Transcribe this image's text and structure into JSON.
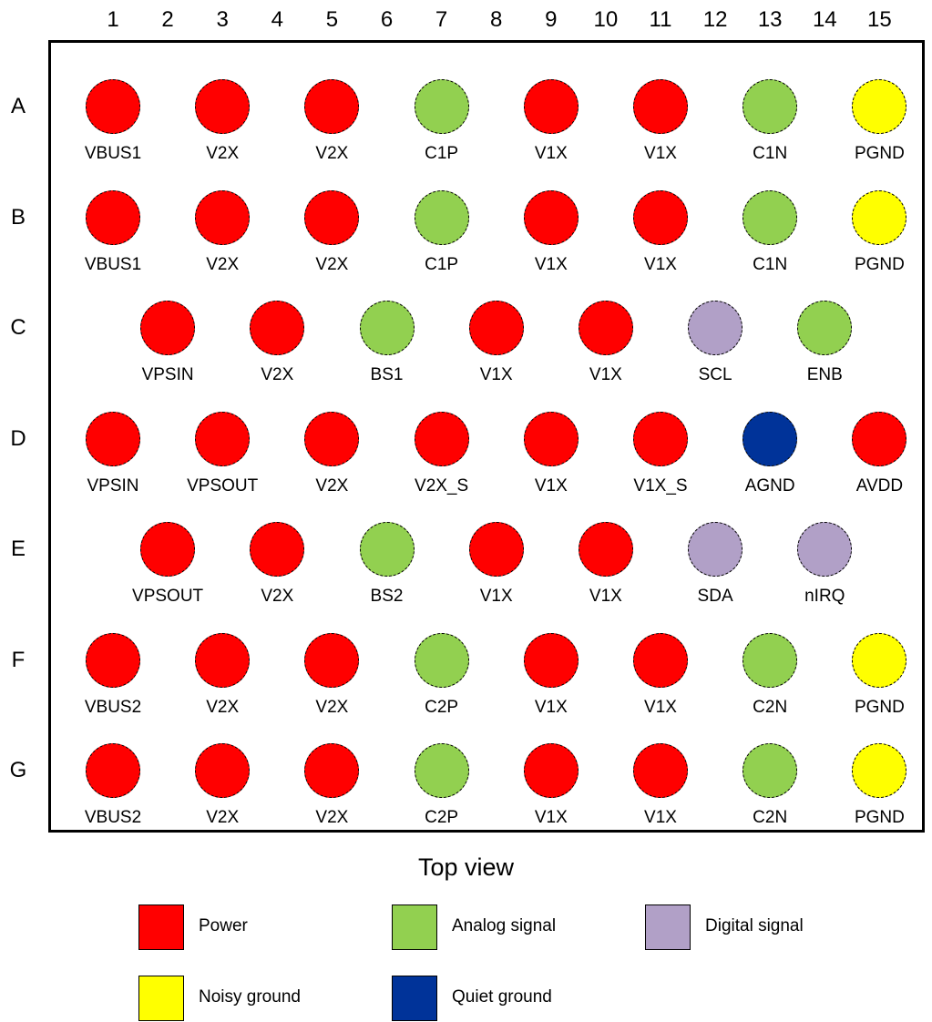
{
  "columns": [
    "1",
    "2",
    "3",
    "4",
    "5",
    "6",
    "7",
    "8",
    "9",
    "10",
    "11",
    "12",
    "13",
    "14",
    "15"
  ],
  "rows": [
    "A",
    "B",
    "C",
    "D",
    "E",
    "F",
    "G"
  ],
  "types": {
    "power": {
      "label": "Power",
      "color": "#ff0000"
    },
    "analog": {
      "label": "Analog signal",
      "color": "#92d050"
    },
    "digital": {
      "label": "Digital signal",
      "color": "#b1a0c7"
    },
    "noisy": {
      "label": "Noisy ground",
      "color": "#ffff00"
    },
    "quiet": {
      "label": "Quiet ground",
      "color": "#003399"
    }
  },
  "balls": [
    {
      "row": "A",
      "col": 1,
      "name": "VBUS1",
      "type": "power"
    },
    {
      "row": "A",
      "col": 3,
      "name": "V2X",
      "type": "power"
    },
    {
      "row": "A",
      "col": 5,
      "name": "V2X",
      "type": "power"
    },
    {
      "row": "A",
      "col": 7,
      "name": "C1P",
      "type": "analog"
    },
    {
      "row": "A",
      "col": 9,
      "name": "V1X",
      "type": "power"
    },
    {
      "row": "A",
      "col": 11,
      "name": "V1X",
      "type": "power"
    },
    {
      "row": "A",
      "col": 13,
      "name": "C1N",
      "type": "analog"
    },
    {
      "row": "A",
      "col": 15,
      "name": "PGND",
      "type": "noisy"
    },
    {
      "row": "B",
      "col": 1,
      "name": "VBUS1",
      "type": "power"
    },
    {
      "row": "B",
      "col": 3,
      "name": "V2X",
      "type": "power"
    },
    {
      "row": "B",
      "col": 5,
      "name": "V2X",
      "type": "power"
    },
    {
      "row": "B",
      "col": 7,
      "name": "C1P",
      "type": "analog"
    },
    {
      "row": "B",
      "col": 9,
      "name": "V1X",
      "type": "power"
    },
    {
      "row": "B",
      "col": 11,
      "name": "V1X",
      "type": "power"
    },
    {
      "row": "B",
      "col": 13,
      "name": "C1N",
      "type": "analog"
    },
    {
      "row": "B",
      "col": 15,
      "name": "PGND",
      "type": "noisy"
    },
    {
      "row": "C",
      "col": 2,
      "name": "VPSIN",
      "type": "power"
    },
    {
      "row": "C",
      "col": 4,
      "name": "V2X",
      "type": "power"
    },
    {
      "row": "C",
      "col": 6,
      "name": "BS1",
      "type": "analog"
    },
    {
      "row": "C",
      "col": 8,
      "name": "V1X",
      "type": "power"
    },
    {
      "row": "C",
      "col": 10,
      "name": "V1X",
      "type": "power"
    },
    {
      "row": "C",
      "col": 12,
      "name": "SCL",
      "type": "digital"
    },
    {
      "row": "C",
      "col": 14,
      "name": "ENB",
      "type": "analog"
    },
    {
      "row": "D",
      "col": 1,
      "name": "VPSIN",
      "type": "power"
    },
    {
      "row": "D",
      "col": 3,
      "name": "VPSOUT",
      "type": "power"
    },
    {
      "row": "D",
      "col": 5,
      "name": "V2X",
      "type": "power"
    },
    {
      "row": "D",
      "col": 7,
      "name": "V2X_S",
      "type": "power"
    },
    {
      "row": "D",
      "col": 9,
      "name": "V1X",
      "type": "power"
    },
    {
      "row": "D",
      "col": 11,
      "name": "V1X_S",
      "type": "power"
    },
    {
      "row": "D",
      "col": 13,
      "name": "AGND",
      "type": "quiet"
    },
    {
      "row": "D",
      "col": 15,
      "name": "AVDD",
      "type": "power"
    },
    {
      "row": "E",
      "col": 2,
      "name": "VPSOUT",
      "type": "power"
    },
    {
      "row": "E",
      "col": 4,
      "name": "V2X",
      "type": "power"
    },
    {
      "row": "E",
      "col": 6,
      "name": "BS2",
      "type": "analog"
    },
    {
      "row": "E",
      "col": 8,
      "name": "V1X",
      "type": "power"
    },
    {
      "row": "E",
      "col": 10,
      "name": "V1X",
      "type": "power"
    },
    {
      "row": "E",
      "col": 12,
      "name": "SDA",
      "type": "digital"
    },
    {
      "row": "E",
      "col": 14,
      "name": "nIRQ",
      "type": "digital"
    },
    {
      "row": "F",
      "col": 1,
      "name": "VBUS2",
      "type": "power"
    },
    {
      "row": "F",
      "col": 3,
      "name": "V2X",
      "type": "power"
    },
    {
      "row": "F",
      "col": 5,
      "name": "V2X",
      "type": "power"
    },
    {
      "row": "F",
      "col": 7,
      "name": "C2P",
      "type": "analog"
    },
    {
      "row": "F",
      "col": 9,
      "name": "V1X",
      "type": "power"
    },
    {
      "row": "F",
      "col": 11,
      "name": "V1X",
      "type": "power"
    },
    {
      "row": "F",
      "col": 13,
      "name": "C2N",
      "type": "analog"
    },
    {
      "row": "F",
      "col": 15,
      "name": "PGND",
      "type": "noisy"
    },
    {
      "row": "G",
      "col": 1,
      "name": "VBUS2",
      "type": "power"
    },
    {
      "row": "G",
      "col": 3,
      "name": "V2X",
      "type": "power"
    },
    {
      "row": "G",
      "col": 5,
      "name": "V2X",
      "type": "power"
    },
    {
      "row": "G",
      "col": 7,
      "name": "C2P",
      "type": "analog"
    },
    {
      "row": "G",
      "col": 9,
      "name": "V1X",
      "type": "power"
    },
    {
      "row": "G",
      "col": 11,
      "name": "V1X",
      "type": "power"
    },
    {
      "row": "G",
      "col": 13,
      "name": "C2N",
      "type": "analog"
    },
    {
      "row": "G",
      "col": 15,
      "name": "PGND",
      "type": "noisy"
    }
  ],
  "view_title": "Top view",
  "legend": [
    "power",
    "analog",
    "digital",
    "noisy",
    "quiet"
  ]
}
